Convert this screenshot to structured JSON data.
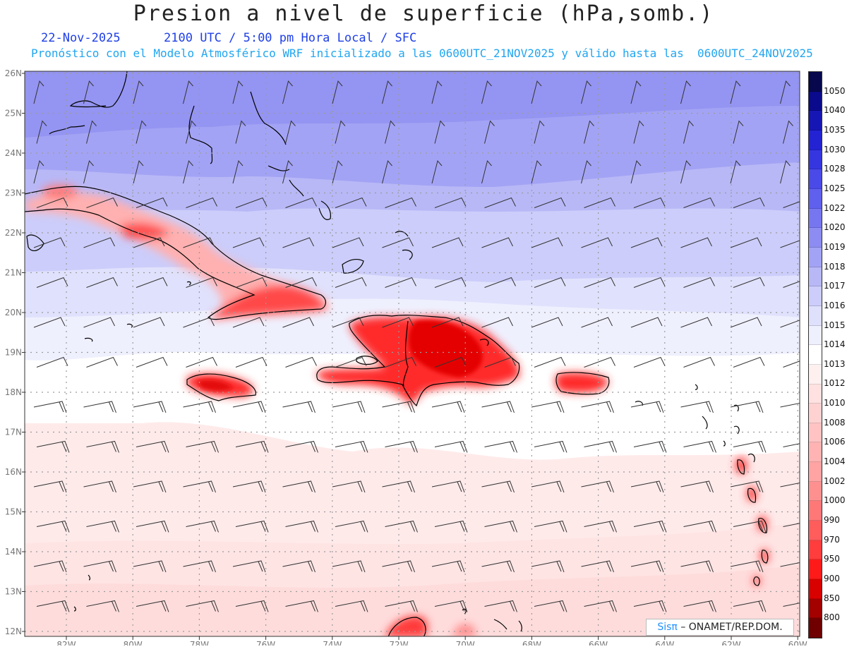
{
  "header": {
    "title": "Presion a nivel de superficie (hPa,somb.)",
    "date": "22-Nov-2025",
    "time_info": "2100 UTC / 5:00 pm Hora Local / SFC",
    "forecast_info": "Pronóstico con el Modelo Atmosférico WRF inicializado a las 0600UTC_21NOV2025 y válido hasta las  0600UTC_24NOV2025"
  },
  "map": {
    "lat_labels": [
      "26N",
      "25N",
      "24N",
      "23N",
      "22N",
      "21N",
      "20N",
      "19N",
      "18N",
      "17N",
      "16N",
      "15N",
      "14N",
      "13N",
      "12N"
    ],
    "lon_labels": [
      "82W",
      "80W",
      "78W",
      "76W",
      "74W",
      "72W",
      "70W",
      "68W",
      "66W",
      "64W",
      "62W",
      "60W"
    ]
  },
  "colorbar": {
    "labels": [
      "1050",
      "1040",
      "1035",
      "1030",
      "1028",
      "1025",
      "1022",
      "1020",
      "1019",
      "1018",
      "1017",
      "1016",
      "1015",
      "1014",
      "1013",
      "1012",
      "1010",
      "1008",
      "1006",
      "1004",
      "1002",
      "1000",
      "990",
      "970",
      "950",
      "900",
      "850",
      "800"
    ],
    "colors": [
      "#07074e",
      "#0a0a8c",
      "#1616b4",
      "#2323d4",
      "#3636e0",
      "#4a4ae8",
      "#6060ee",
      "#7676f0",
      "#8c8cf2",
      "#a3a3f5",
      "#b8b8f7",
      "#cccdfa",
      "#dfe0fc",
      "#eff0fe",
      "#ffffff",
      "#fff0f0",
      "#ffe1e1",
      "#ffd2d2",
      "#ffc3c3",
      "#ffb3b3",
      "#ffa3a3",
      "#ff9090",
      "#ff7878",
      "#ff5c5c",
      "#ff3d3d",
      "#ff1a1a",
      "#d90000",
      "#a30000",
      "#700000"
    ]
  },
  "credit": {
    "brand": "Sisπ",
    "text": "– ONAMET/REP.DOM."
  }
}
